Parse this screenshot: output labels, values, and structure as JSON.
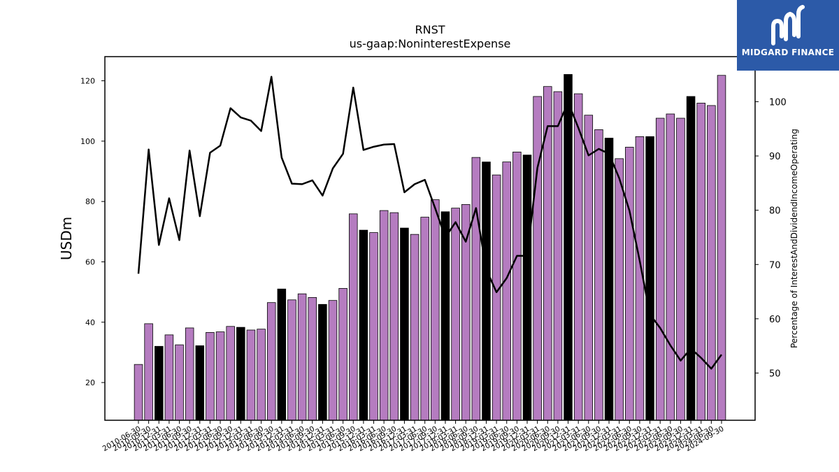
{
  "chart_data": {
    "type": "bar",
    "title": "RNST",
    "subtitle": "us-gaap:NoninterestExpense",
    "ylabel": "USDm",
    "y2label": "Percentage of InterestAndDividendIncomeOperating",
    "ylim": [
      7.5,
      128
    ],
    "y2lim": [
      41.3,
      108.3
    ],
    "yticks": [
      20,
      40,
      60,
      80,
      100,
      120
    ],
    "y2ticks": [
      50,
      60,
      70,
      80,
      90,
      100
    ],
    "grid": false,
    "colors": {
      "bar": "#b57cc0",
      "bar_highlight": "#000000",
      "line": "#000000"
    },
    "categories": [
      "2010-06-30",
      "2010-09-30",
      "2010-12-31",
      "2011-03-31",
      "2011-06-30",
      "2011-09-30",
      "2011-12-31",
      "2012-03-31",
      "2012-06-30",
      "2012-09-30",
      "2012-12-31",
      "2013-03-31",
      "2013-06-30",
      "2013-09-30",
      "2013-12-31",
      "2014-03-31",
      "2014-06-30",
      "2014-09-30",
      "2014-12-31",
      "2015-03-31",
      "2015-06-30",
      "2015-09-30",
      "2015-12-31",
      "2016-03-31",
      "2016-06-30",
      "2016-09-30",
      "2016-12-31",
      "2017-03-31",
      "2017-06-30",
      "2017-09-30",
      "2017-12-31",
      "2018-03-31",
      "2018-06-30",
      "2018-09-30",
      "2018-12-31",
      "2019-03-31",
      "2019-06-30",
      "2019-09-30",
      "2019-12-31",
      "2020-03-31",
      "2020-06-30",
      "2020-09-30",
      "2020-12-31",
      "2021-03-31",
      "2021-06-30",
      "2021-09-30",
      "2021-12-31",
      "2022-03-31",
      "2022-06-30",
      "2022-09-30",
      "2022-12-31",
      "2023-03-31",
      "2023-06-30",
      "2023-09-30",
      "2023-12-31",
      "2024-03-31",
      "2024-06-30",
      "2024-09-30"
    ],
    "tick_labels": [
      "2010-06-30",
      "2010-09-30",
      "2010-12-31",
      "2011-03-31",
      "2011-06-30",
      "2011-09-30",
      "2011-12-31",
      "2012-03-31",
      "2012-06-30",
      "2012-09-30",
      "2012-12-31",
      "2013-03-31",
      "2013-06-30",
      "2013-09-30",
      "2013-12-31",
      "2014-03-31",
      "2014-06-30",
      "2014-09-30",
      "2014-12-31",
      "2015-03-31",
      "2015-06-30",
      "2015-09-30",
      "2015-12-31",
      "2016-03-31",
      "2016-06-30",
      "2016-09-30",
      "2016-12-31",
      "2017-03-31",
      "2017-06-30",
      "2017-09-30",
      "2017-12-31",
      "2018-03-31",
      "2018-06-30",
      "2018-09-30",
      "2018-12-31",
      "2019-03-31",
      "2019-06-30",
      "2019-09-30",
      "2019-12-31",
      "2020-03-31",
      "2020-06-30",
      "2020-09-30",
      "2020-12-31",
      "2021-03-31",
      "2021-06-30",
      "2021-09-30",
      "2021-12-31",
      "2022-03-31",
      "2022-06-30",
      "2022-09-30",
      "2022-12-31",
      "2023-03-31",
      "2023-06-30",
      "2023-09-30",
      "2023-12-31",
      "2024-03-31",
      "2024-06-30",
      "2024-09-30"
    ],
    "series": [
      {
        "type": "bar",
        "values": [
          26.0,
          39.5,
          32.0,
          35.8,
          32.5,
          38.1,
          32.2,
          36.6,
          36.8,
          38.6,
          38.3,
          37.4,
          37.7,
          46.5,
          51.0,
          47.4,
          49.4,
          48.2,
          45.9,
          47.2,
          51.2,
          75.9,
          70.5,
          69.7,
          77.0,
          76.3,
          71.2,
          69.1,
          74.8,
          80.6,
          76.6,
          77.8,
          79.0,
          94.6,
          93.1,
          88.8,
          93.1,
          96.4,
          95.4,
          114.8,
          118.1,
          116.4,
          122.1,
          115.7,
          108.6,
          103.8,
          101.0,
          94.2,
          98.0,
          101.5,
          101.5,
          107.6,
          109.0,
          107.6,
          114.8,
          112.6,
          111.8,
          121.8
        ],
        "highlight": [
          false,
          false,
          true,
          false,
          false,
          false,
          true,
          false,
          false,
          false,
          true,
          false,
          false,
          false,
          true,
          false,
          false,
          false,
          true,
          false,
          false,
          false,
          true,
          false,
          false,
          false,
          true,
          false,
          false,
          false,
          true,
          false,
          false,
          false,
          true,
          false,
          false,
          false,
          true,
          false,
          false,
          false,
          true,
          false,
          false,
          false,
          true,
          false,
          false,
          false,
          true,
          false,
          false,
          false,
          true,
          false,
          false,
          false
        ]
      },
      {
        "type": "line",
        "axis": "right",
        "values": [
          68.3,
          91.2,
          73.6,
          82.2,
          74.5,
          91.0,
          78.9,
          90.6,
          91.9,
          98.8,
          97.1,
          96.5,
          94.6,
          104.6,
          89.7,
          84.9,
          84.8,
          85.5,
          82.7,
          87.7,
          90.4,
          102.6,
          91.1,
          91.7,
          92.1,
          92.2,
          83.3,
          84.8,
          85.6,
          80.4,
          75.0,
          77.8,
          74.2,
          80.4,
          69.1,
          64.9,
          67.5,
          71.6,
          71.6,
          87.8,
          95.5,
          95.5,
          99.9,
          95.2,
          90.1,
          91.3,
          90.4,
          85.9,
          79.9,
          70.7,
          60.8,
          58.3,
          55.1,
          52.3,
          54.5,
          52.8,
          50.8,
          53.4
        ]
      }
    ]
  },
  "logo": {
    "text": "MIDGARD FINANCE"
  }
}
